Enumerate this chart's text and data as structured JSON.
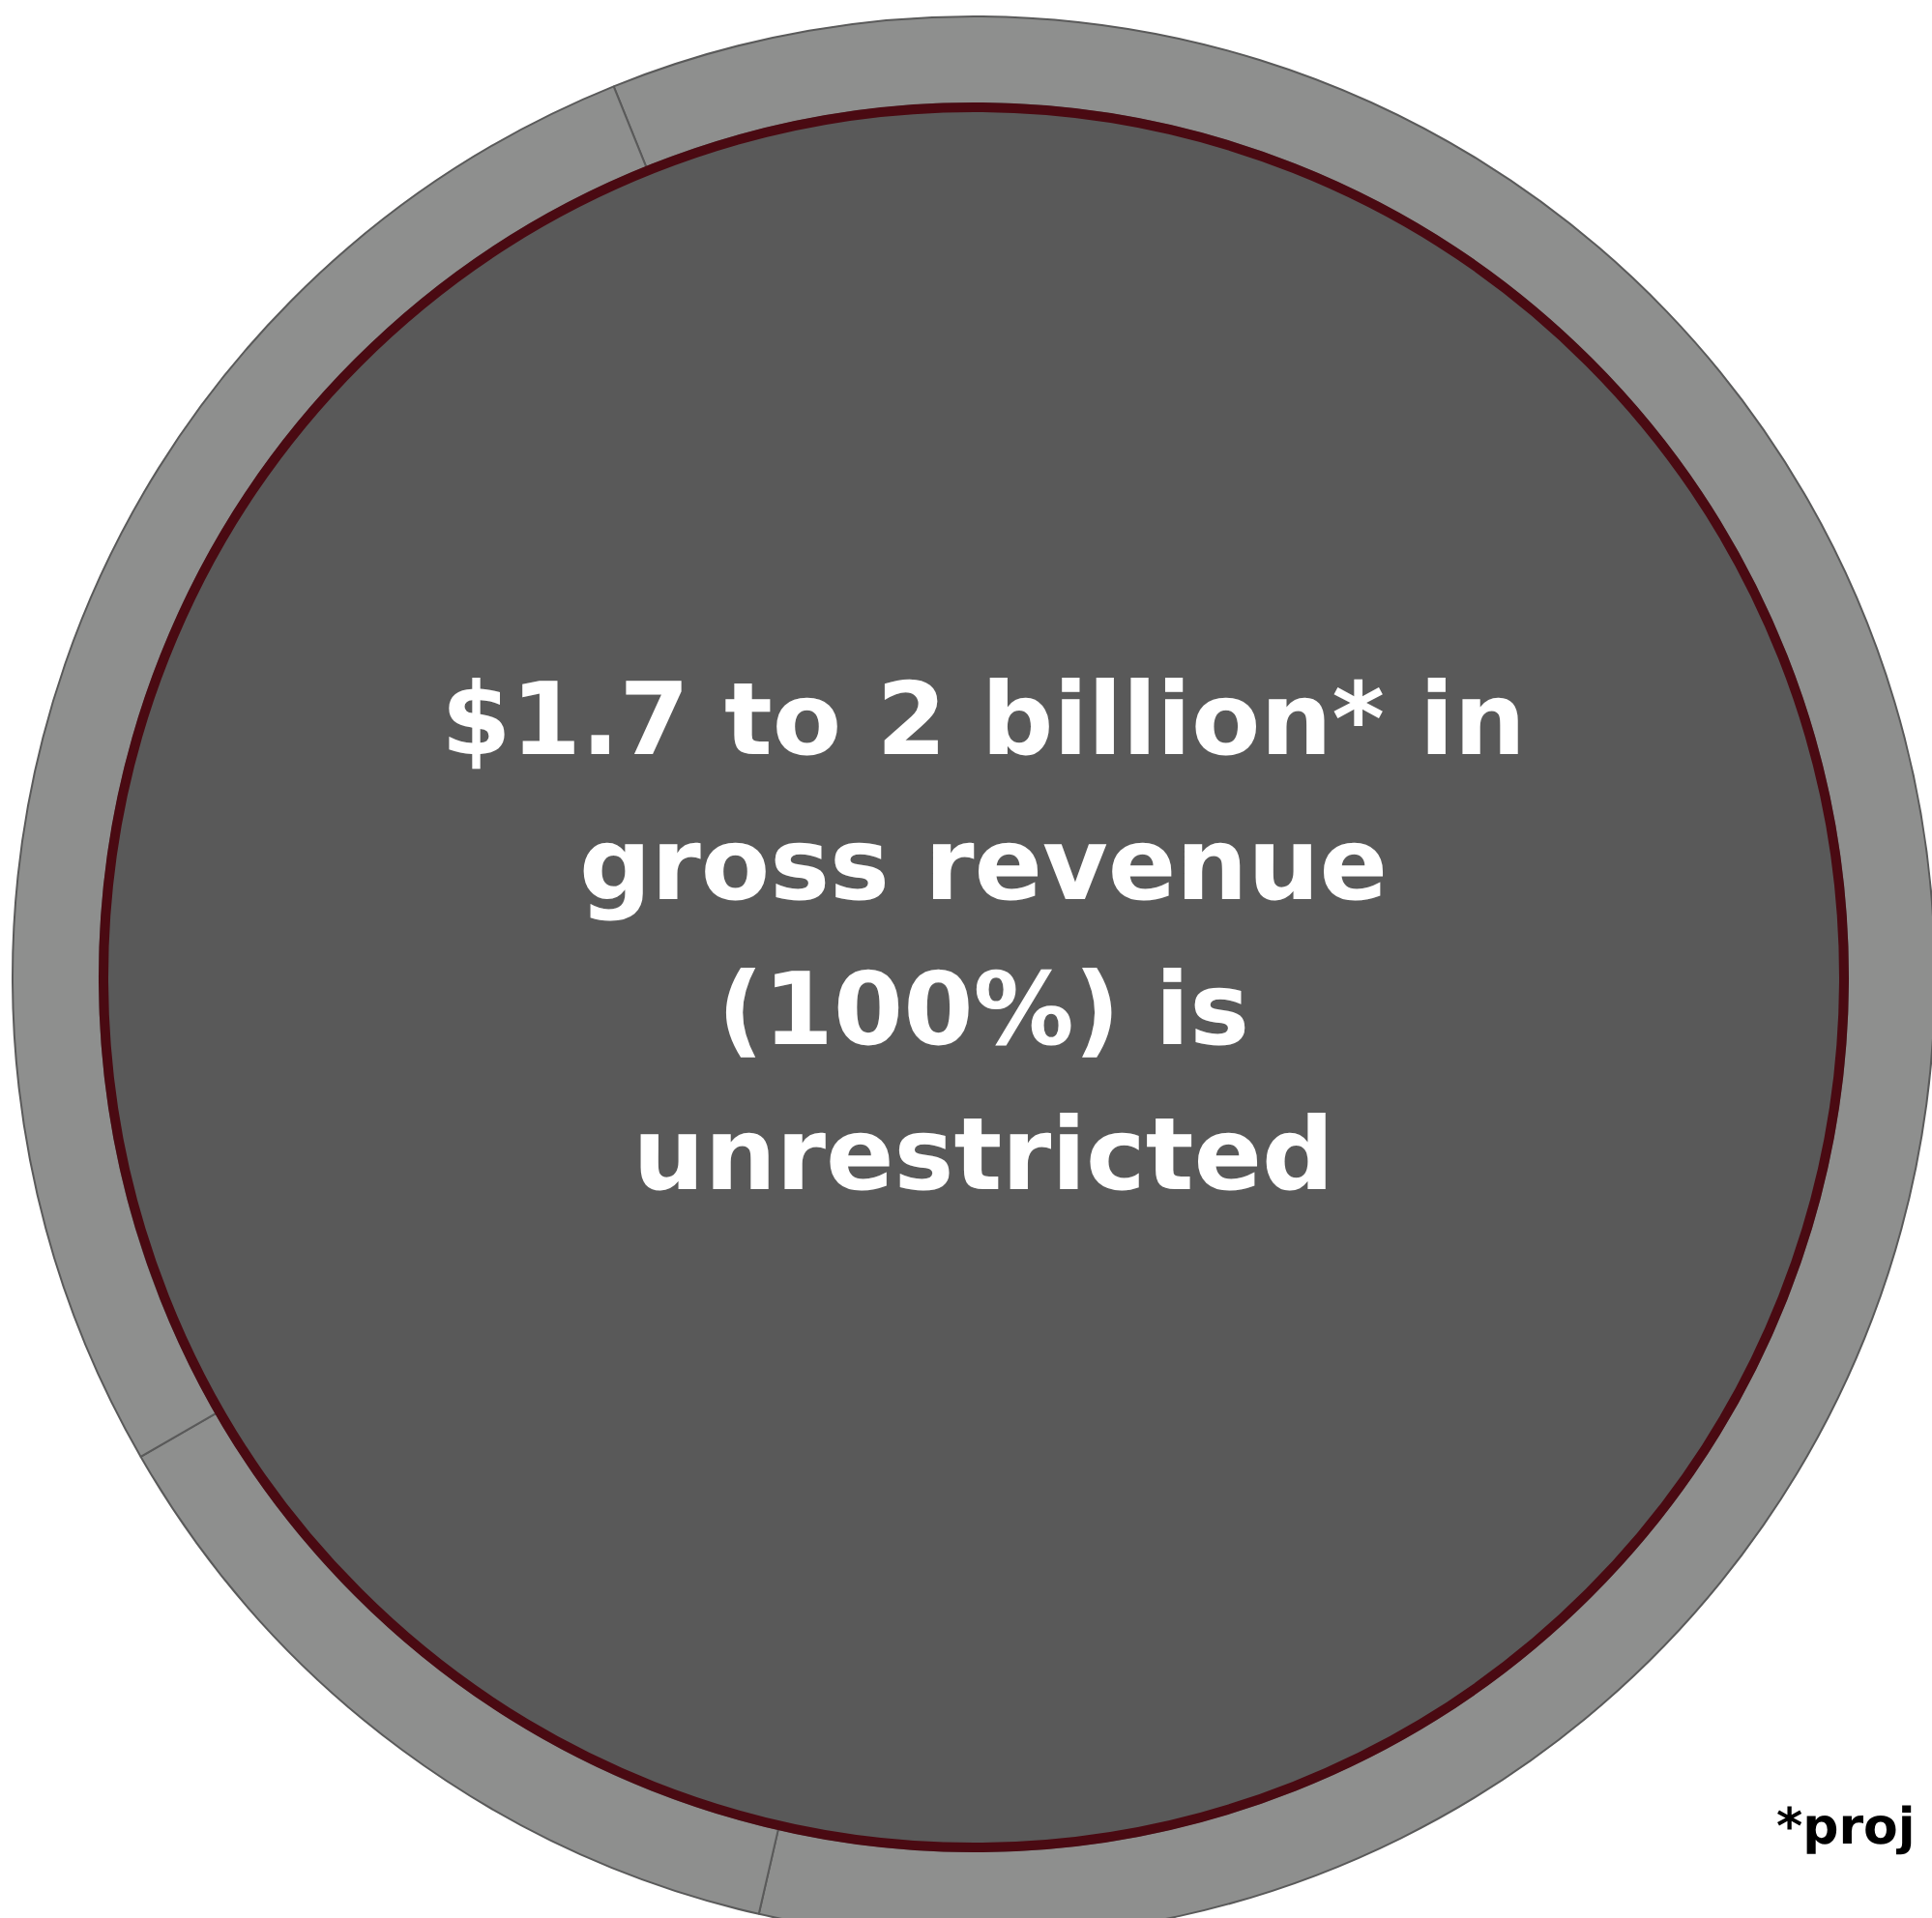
{
  "chart_data": {
    "type": "donut",
    "categories": [
      null,
      null,
      null
    ],
    "values": [
      59.7,
      13.1,
      27.2
    ],
    "colors": [
      "#8e8f8e",
      "#8e8f8e",
      "#8e8f8e"
    ],
    "annotations": [
      "$1.7 to 2 billion* in\ngross revenue\n(100%) is\nunrestricted",
      "*proj"
    ]
  }
}
